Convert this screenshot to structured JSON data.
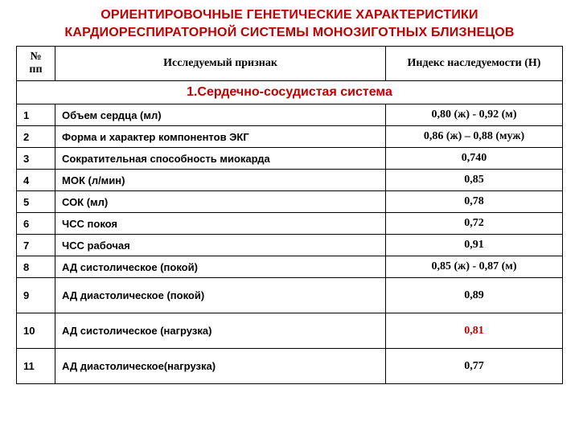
{
  "title_line1": "ОРИЕНТИРОВОЧНЫЕ ГЕНЕТИЧЕСКИЕ ХАРАКТЕРИСТИКИ",
  "title_line2": "КАРДИОРЕСПИРАТОРНОЙ СИСТЕМЫ МОНОЗИГОТНЫХ БЛИЗНЕЦОВ",
  "colors": {
    "accent": "#c00000",
    "text": "#000000",
    "background": "#ffffff",
    "border": "#000000"
  },
  "columns": {
    "num": "№ пп",
    "attr": "Исследуемый признак",
    "val": "Индекс наследуемости (Н)"
  },
  "section_heading": "1.Сердечно-сосудистая система",
  "rows": [
    {
      "n": "1",
      "attr": "Объем сердца (мл)",
      "val": "0,80 (ж) - 0,92 (м)",
      "val_red": false,
      "tall": false
    },
    {
      "n": "2",
      "attr": "Форма и характер компонентов ЭКГ",
      "val": "0,86 (ж) – 0,88 (муж)",
      "val_red": false,
      "tall": false
    },
    {
      "n": "3",
      "attr": "Сократительная способность миокарда",
      "val": "0,740",
      "val_red": false,
      "tall": false
    },
    {
      "n": "4",
      "attr": "МОК (л/мин)",
      "val": "0,85",
      "val_red": false,
      "tall": false
    },
    {
      "n": "5",
      "attr": "СОК (мл)",
      "val": "0,78",
      "val_red": false,
      "tall": false
    },
    {
      "n": "6",
      "attr": "ЧСС покоя",
      "val": "0,72",
      "val_red": false,
      "tall": false
    },
    {
      "n": "7",
      "attr": "ЧСС рабочая",
      "val": "0,91",
      "val_red": false,
      "tall": false
    },
    {
      "n": "8",
      "attr": "АД систолическое (покой)",
      "val": "0,85 (ж) - 0,87 (м)",
      "val_red": false,
      "tall": false
    },
    {
      "n": "9",
      "attr": "АД диастолическое (покой)",
      "val": "0,89",
      "val_red": false,
      "tall": true
    },
    {
      "n": "10",
      "attr": "АД систолическое (нагрузка)",
      "val": "0,81",
      "val_red": true,
      "tall": true
    },
    {
      "n": "11",
      "attr": "АД диастолическое(нагрузка)",
      "val": "0,77",
      "val_red": false,
      "tall": true
    }
  ]
}
